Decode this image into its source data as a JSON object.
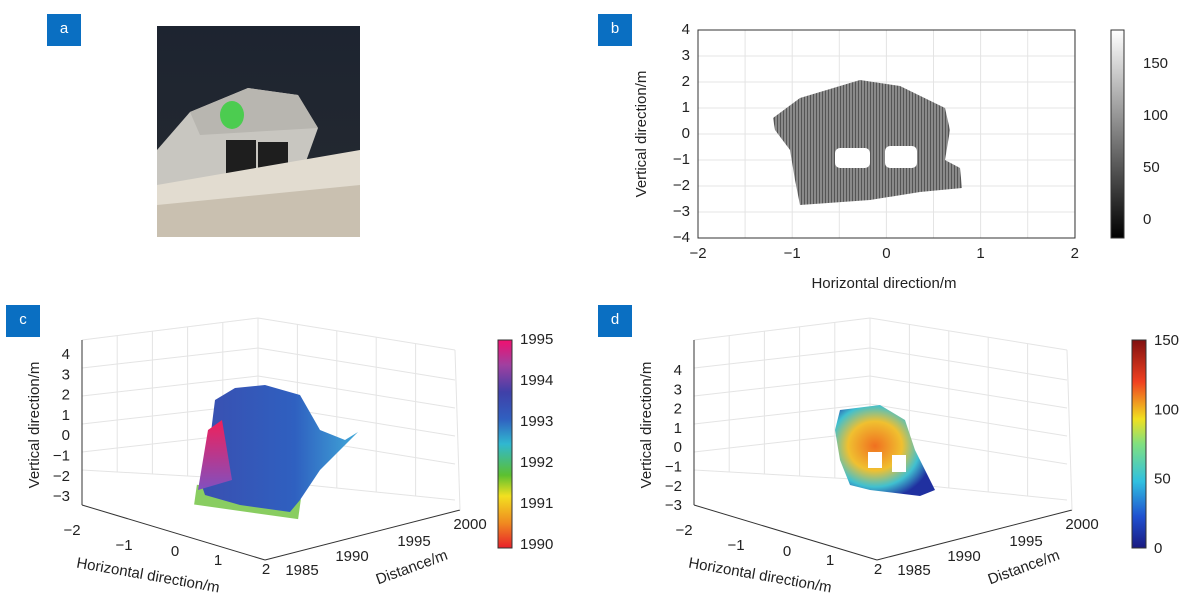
{
  "panels": [
    {
      "label": "a"
    },
    {
      "label": "b",
      "y_label": "Vertical direction/m",
      "x_label": "Horizontal direction/m",
      "yticks": [
        "4",
        "3",
        "2",
        "1",
        "0",
        "−1",
        "−2",
        "−3",
        "−4"
      ],
      "xticks": [
        "−2",
        "−1",
        "0",
        "1",
        "2"
      ],
      "colorbar_ticks": [
        "150",
        "100",
        "50",
        "0"
      ]
    },
    {
      "label": "c",
      "y_label": "Vertical direction/m",
      "x_label": "Horizontal direction/m",
      "z_label": "Distance/m",
      "yticks": [
        "4",
        "3",
        "2",
        "1",
        "0",
        "−1",
        "−2",
        "−3"
      ],
      "xticks": [
        "−2",
        "−1",
        "0",
        "1",
        "2"
      ],
      "zticks": [
        "1985",
        "1990",
        "1995",
        "2000"
      ],
      "colorbar_ticks": [
        "1995",
        "1994",
        "1993",
        "1992",
        "1991",
        "1990"
      ]
    },
    {
      "label": "d",
      "y_label": "Vertical direction/m",
      "x_label": "Horizontal direction/m",
      "z_label": "Distance/m",
      "yticks": [
        "4",
        "3",
        "2",
        "1",
        "0",
        "−1",
        "−2",
        "−3"
      ],
      "xticks": [
        "−2",
        "−1",
        "0",
        "1",
        "2"
      ],
      "zticks": [
        "1985",
        "1990",
        "1995",
        "2000"
      ],
      "colorbar_ticks": [
        "150",
        "100",
        "50",
        "0"
      ]
    }
  ]
}
